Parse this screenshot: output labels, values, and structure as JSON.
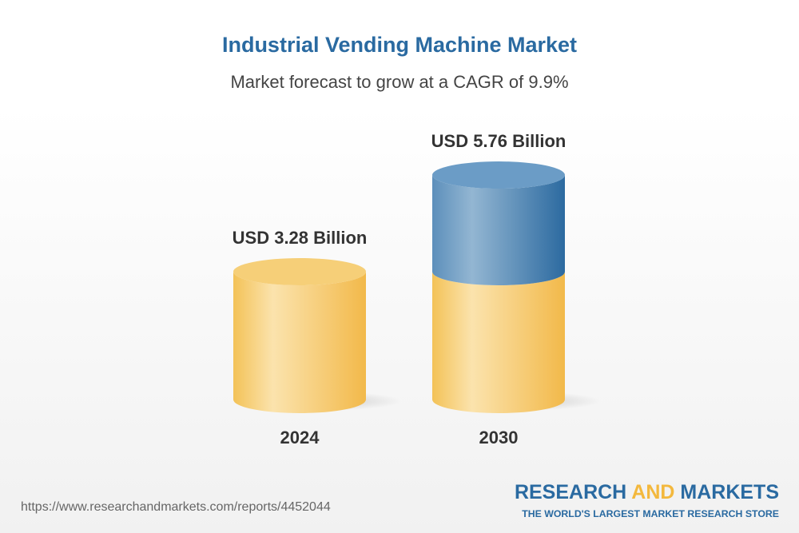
{
  "chart_data": {
    "type": "bar",
    "title": "Industrial Vending Machine Market",
    "subtitle": "Market forecast to grow at a CAGR of 9.9%",
    "categories": [
      "2024",
      "2030"
    ],
    "values": [
      3.28,
      5.76
    ],
    "data_labels": [
      "USD 3.28 Billion",
      "USD 5.76 Billion"
    ],
    "unit": "USD Billion",
    "grid": false,
    "colors": {
      "base": "#f3c257",
      "growth": "#2f6fa5",
      "title": "#2a6aa1"
    }
  },
  "footer": {
    "url": "https://www.researchandmarkets.com/reports/4452044",
    "logo_part1": "RESEARCH ",
    "logo_part2": "AND",
    "logo_part3": " MARKETS",
    "tagline": "THE WORLD'S LARGEST MARKET RESEARCH STORE"
  }
}
